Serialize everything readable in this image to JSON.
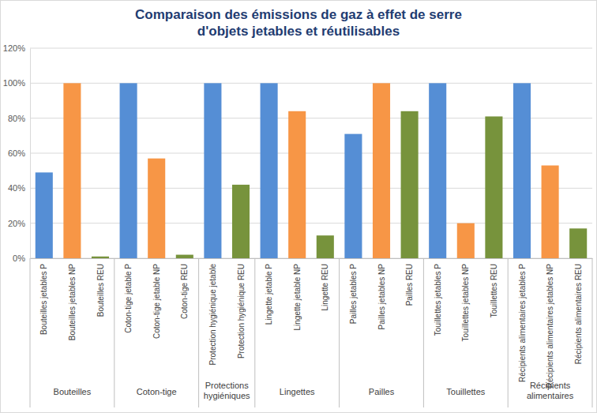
{
  "chart_data": {
    "type": "bar",
    "title": "Comparaison des émissions de gaz à effet de serre\nd'objets jetables et réutilisables",
    "categories": [
      "Bouteilles jetables P",
      "Bouteilles jetables NP",
      "Bouteilles REU",
      "Coton-tige jetable P",
      "Coton-tige jetable NP",
      "Coton-tige REU",
      "Protection hygiénique jetable",
      "Protection hygiénique REU",
      "Lingette jetable P",
      "Lingette jetable NP",
      "Lingette REU",
      "Pailles jetables P",
      "Pailles jetables NP",
      "Pailles REU",
      "Touillettes jetables P",
      "Touillettes jetables NP",
      "Touillettes REU",
      "Récipients alimentaires jetables P",
      "Récipients alimentaires jetables NP",
      "Récipients alimentaires REU"
    ],
    "groups": [
      "Bouteilles",
      "Bouteilles",
      "Bouteilles",
      "Coton-tige",
      "Coton-tige",
      "Coton-tige",
      "Protections hygiéniques",
      "Protections hygiéniques",
      "Lingettes",
      "Lingettes",
      "Lingettes",
      "Pailles",
      "Pailles",
      "Pailles",
      "Touillettes",
      "Touillettes",
      "Touillettes",
      "Récipients alimentaires",
      "Récipients alimentaires",
      "Récipients alimentaires"
    ],
    "values": [
      49,
      100,
      1,
      100,
      57,
      2,
      100,
      42,
      100,
      84,
      13,
      71,
      100,
      84,
      100,
      20,
      81,
      100,
      53,
      17
    ],
    "colors": [
      "#558ed5",
      "#f79646",
      "#77933c",
      "#558ed5",
      "#f79646",
      "#77933c",
      "#558ed5",
      "#77933c",
      "#558ed5",
      "#f79646",
      "#77933c",
      "#558ed5",
      "#f79646",
      "#77933c",
      "#558ed5",
      "#f79646",
      "#77933c",
      "#558ed5",
      "#f79646",
      "#77933c"
    ],
    "ylim": [
      0,
      120
    ],
    "yticks": [
      {
        "value": 0,
        "label": "0%"
      },
      {
        "value": 20,
        "label": "20%"
      },
      {
        "value": 40,
        "label": "40%"
      },
      {
        "value": 60,
        "label": "60%"
      },
      {
        "value": 80,
        "label": "80%"
      },
      {
        "value": 100,
        "label": "100%"
      },
      {
        "value": 120,
        "label": "120%"
      }
    ],
    "grid": true
  }
}
